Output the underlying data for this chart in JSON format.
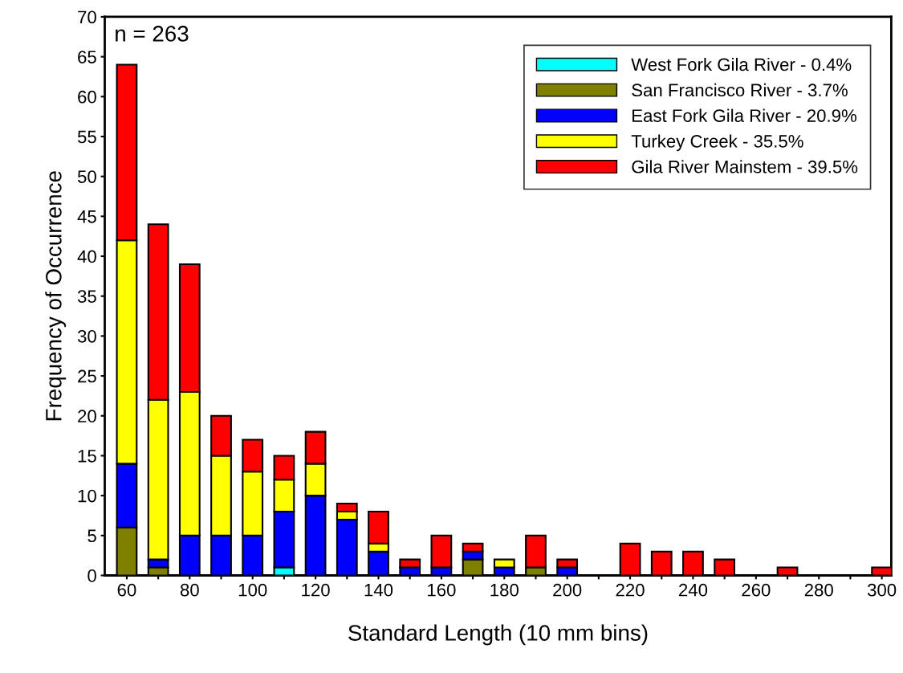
{
  "chart_data": {
    "type": "bar",
    "stacked": true,
    "xlabel": "Standard Length (10 mm bins)",
    "ylabel": "Frequency of Occurrence",
    "annotations": [
      "n = 263"
    ],
    "x": [
      60,
      70,
      80,
      90,
      100,
      110,
      120,
      130,
      140,
      150,
      160,
      170,
      180,
      190,
      200,
      210,
      220,
      230,
      240,
      250,
      260,
      270,
      280,
      290,
      300
    ],
    "series": [
      {
        "name": "West Fork Gila River - 0.4%",
        "color": "#00ffff",
        "values": [
          0,
          0,
          0,
          0,
          0,
          1,
          0,
          0,
          0,
          0,
          0,
          0,
          0,
          0,
          0,
          0,
          0,
          0,
          0,
          0,
          0,
          0,
          0,
          0,
          0
        ]
      },
      {
        "name": "San Francisco River - 3.7%",
        "color": "#808000",
        "values": [
          6,
          1,
          0,
          0,
          0,
          0,
          0,
          0,
          0,
          0,
          0,
          2,
          0,
          1,
          0,
          0,
          0,
          0,
          0,
          0,
          0,
          0,
          0,
          0,
          0
        ]
      },
      {
        "name": "East Fork Gila River - 20.9%",
        "color": "#0000ff",
        "values": [
          8,
          1,
          5,
          5,
          5,
          7,
          10,
          7,
          3,
          1,
          1,
          1,
          1,
          0,
          1,
          0,
          0,
          0,
          0,
          0,
          0,
          0,
          0,
          0,
          0
        ]
      },
      {
        "name": "Turkey Creek - 35.5%",
        "color": "#ffff00",
        "values": [
          28,
          20,
          18,
          10,
          8,
          4,
          4,
          1,
          1,
          0,
          0,
          0,
          1,
          0,
          0,
          0,
          0,
          0,
          0,
          0,
          0,
          0,
          0,
          0,
          0
        ]
      },
      {
        "name": "Gila River Mainstem - 39.5%",
        "color": "#ff0000",
        "values": [
          22,
          22,
          16,
          5,
          4,
          3,
          4,
          1,
          4,
          1,
          4,
          1,
          0,
          4,
          1,
          0,
          4,
          3,
          3,
          2,
          0,
          1,
          0,
          0,
          1
        ]
      }
    ],
    "xlim": [
      53,
      303
    ],
    "ylim": [
      0,
      70
    ],
    "xticks": [
      60,
      {
        "value": 70,
        "label": null
      },
      80,
      {
        "value": 90,
        "label": null
      },
      100,
      {
        "value": 110,
        "label": null
      },
      120,
      {
        "value": 130,
        "label": null
      },
      140,
      {
        "value": 150,
        "label": null
      },
      160,
      {
        "value": 170,
        "label": null
      },
      180,
      {
        "value": 190,
        "label": null
      },
      200,
      {
        "value": 210,
        "label": null
      },
      220,
      {
        "value": 230,
        "label": null
      },
      240,
      {
        "value": 250,
        "label": null
      },
      260,
      {
        "value": 270,
        "label": null
      },
      280,
      {
        "value": 290,
        "label": null
      },
      300
    ],
    "yticks": [
      0,
      5,
      10,
      15,
      20,
      25,
      30,
      35,
      40,
      45,
      50,
      55,
      60,
      65,
      70
    ],
    "legend": "top right",
    "grid": false
  }
}
